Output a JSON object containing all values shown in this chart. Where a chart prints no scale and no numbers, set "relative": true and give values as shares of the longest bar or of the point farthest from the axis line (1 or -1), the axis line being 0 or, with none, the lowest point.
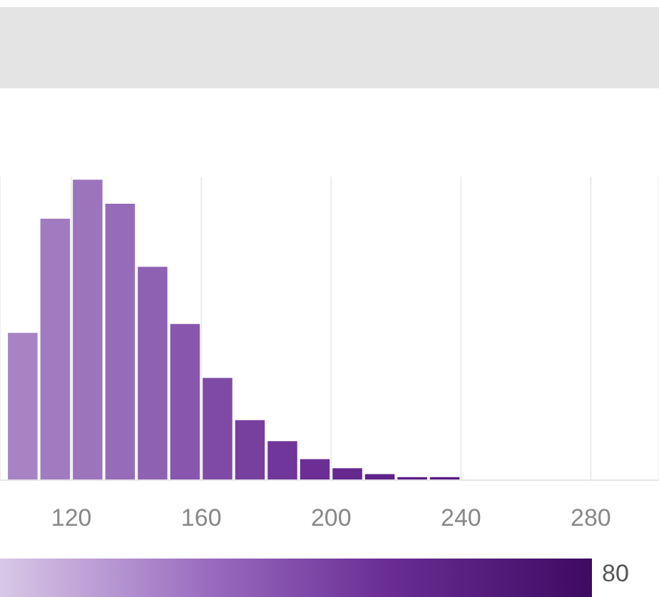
{
  "chart_data": {
    "type": "bar",
    "relative": true,
    "x": [
      105,
      115,
      125,
      135,
      145,
      155,
      165,
      175,
      185,
      195,
      205,
      215,
      225,
      235
    ],
    "values": [
      0.49,
      0.87,
      1,
      0.92,
      0.71,
      0.52,
      0.34,
      0.2,
      0.13,
      0.07,
      0.04,
      0.02,
      0.01,
      0.01
    ],
    "colors": [
      "#a783c4",
      "#a07bbf",
      "#9c74bc",
      "#966cb8",
      "#8f61b3",
      "#8856ad",
      "#7f4aa6",
      "#77409f",
      "#703699",
      "#6a2e94",
      "#64288f",
      "#5e228b",
      "#581c86",
      "#541884"
    ],
    "xlim": [
      98,
      301
    ],
    "xticks": [
      120,
      160,
      200,
      240,
      280
    ],
    "grid": "x",
    "annotations": [
      "80"
    ]
  }
}
